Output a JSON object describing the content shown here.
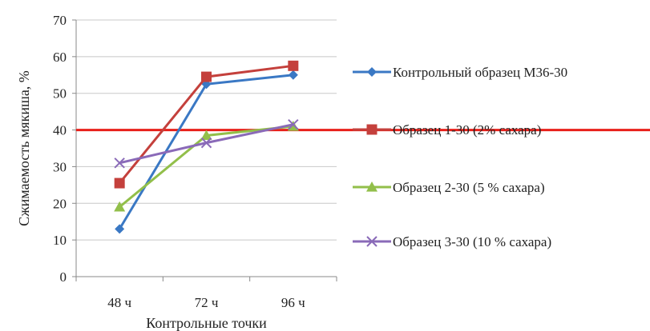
{
  "chart_data": {
    "type": "line",
    "title": "",
    "xlabel": "Контрольные точки",
    "ylabel": "Сжимаемость мякиша, %",
    "categories": [
      "48 ч",
      "72 ч",
      "96 ч"
    ],
    "ylim": [
      0,
      70
    ],
    "yticks": [
      0,
      10,
      20,
      30,
      40,
      50,
      60,
      70
    ],
    "grid": true,
    "legend_position": "right",
    "reference_line": {
      "y": 40,
      "color": "#e8201a"
    },
    "series": [
      {
        "name": "Контрольный образец М36-30",
        "values": [
          13,
          52.5,
          55
        ],
        "color": "#3a78c4",
        "marker": "diamond"
      },
      {
        "name": "Образец 1-30 (2% сахара)",
        "values": [
          25.5,
          54.5,
          57.5
        ],
        "color": "#c4403c",
        "marker": "square"
      },
      {
        "name": "Образец 2-30 (5 % сахара)",
        "values": [
          19,
          38.5,
          41
        ],
        "color": "#92bf4a",
        "marker": "triangle"
      },
      {
        "name": "Образец 3-30 (10 % сахара)",
        "values": [
          31,
          36.5,
          41.5
        ],
        "color": "#8a6ab8",
        "marker": "x"
      }
    ]
  }
}
